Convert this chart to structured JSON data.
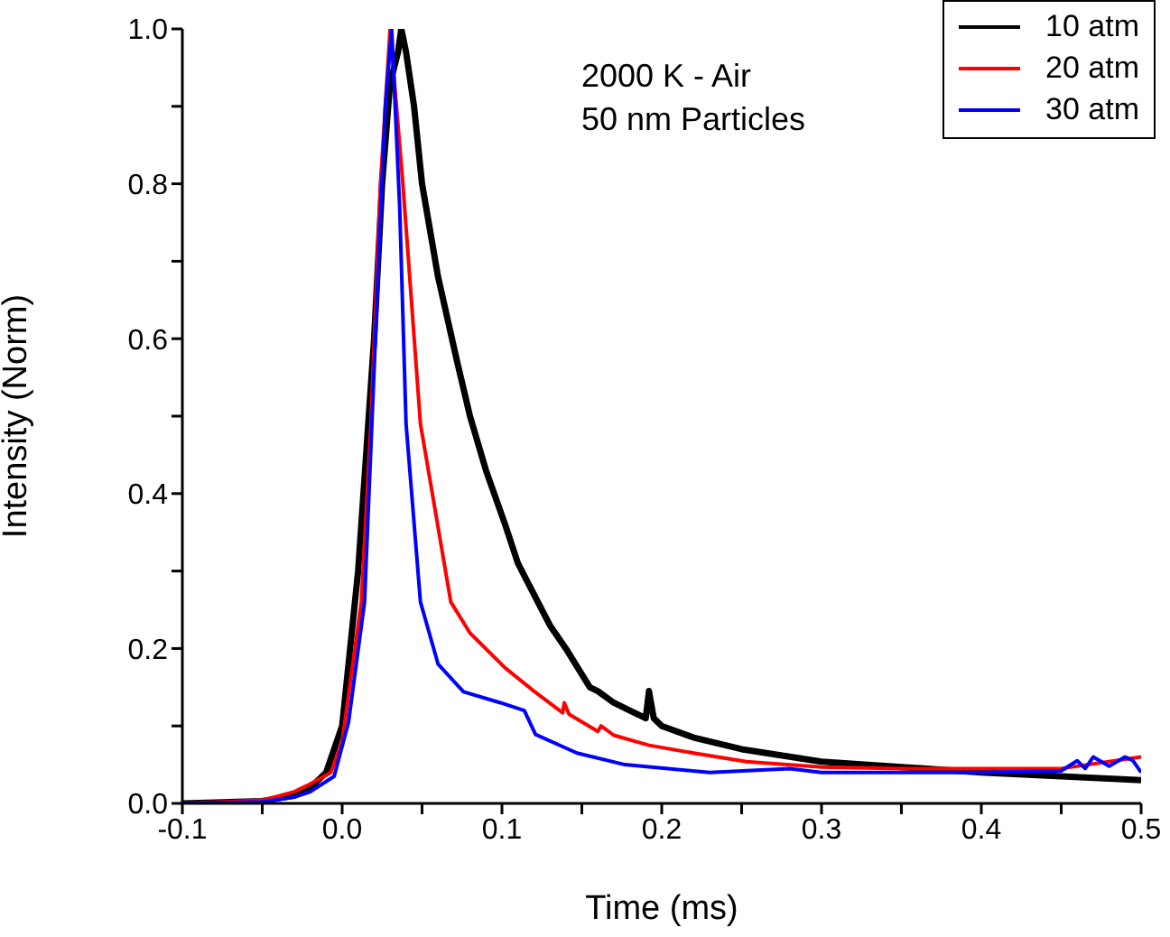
{
  "chart_data": {
    "type": "line",
    "xlabel": "Time (ms)",
    "ylabel": "Intensity (Norm)",
    "annotations": [
      "2000 K - Air",
      "50 nm Particles"
    ],
    "xlim": [
      -0.1,
      0.5
    ],
    "ylim": [
      0,
      1.0
    ],
    "xticks": [
      {
        "value": -0.1,
        "label": "-0.1"
      },
      {
        "value": -0.05,
        "label": null
      },
      {
        "value": 0,
        "label": "0.0"
      },
      {
        "value": 0.05,
        "label": null
      },
      {
        "value": 0.1,
        "label": "0.1"
      },
      {
        "value": 0.15,
        "label": null
      },
      {
        "value": 0.2,
        "label": "0.2"
      },
      {
        "value": 0.25,
        "label": null
      },
      {
        "value": 0.3,
        "label": "0.3"
      },
      {
        "value": 0.35,
        "label": null
      },
      {
        "value": 0.4,
        "label": "0.4"
      },
      {
        "value": 0.45,
        "label": null
      },
      {
        "value": 0.5,
        "label": "0.5"
      }
    ],
    "yticks": [
      {
        "value": 0,
        "label": "0.0"
      },
      {
        "value": 0.1,
        "label": null
      },
      {
        "value": 0.2,
        "label": "0.2"
      },
      {
        "value": 0.3,
        "label": null
      },
      {
        "value": 0.4,
        "label": "0.4"
      },
      {
        "value": 0.5,
        "label": null
      },
      {
        "value": 0.6,
        "label": "0.6"
      },
      {
        "value": 0.7,
        "label": null
      },
      {
        "value": 0.8,
        "label": "0.8"
      },
      {
        "value": 0.9,
        "label": null
      },
      {
        "value": 1.0,
        "label": "1.0"
      }
    ],
    "grid": false,
    "legend": "top right",
    "line_style": "solid",
    "series": [
      {
        "name": "10 atm",
        "color": "#000000",
        "x": [
          -0.1,
          -0.05,
          -0.03,
          -0.02,
          -0.01,
          0,
          0.01,
          0.02,
          0.025,
          0.03,
          0.035,
          0.037,
          0.04,
          0.045,
          0.05,
          0.06,
          0.072,
          0.08,
          0.09,
          0.102,
          0.11,
          0.12,
          0.13,
          0.14,
          0.155,
          0.16,
          0.17,
          0.18,
          0.19,
          0.192,
          0.195,
          0.2,
          0.22,
          0.25,
          0.3,
          0.35,
          0.4,
          0.45,
          0.5
        ],
        "values": [
          0,
          0.003,
          0.01,
          0.02,
          0.04,
          0.1,
          0.3,
          0.6,
          0.8,
          0.93,
          0.97,
          1.0,
          0.97,
          0.9,
          0.8,
          0.68,
          0.57,
          0.5,
          0.43,
          0.36,
          0.31,
          0.27,
          0.23,
          0.2,
          0.15,
          0.145,
          0.13,
          0.12,
          0.11,
          0.145,
          0.11,
          0.1,
          0.085,
          0.07,
          0.054,
          0.047,
          0.04,
          0.035,
          0.03
        ]
      },
      {
        "name": "20 atm",
        "color": "#ff0000",
        "x": [
          -0.1,
          -0.05,
          -0.03,
          -0.02,
          -0.007,
          0,
          0.012,
          0.018,
          0.024,
          0.03,
          0.034,
          0.038,
          0.049,
          0.068,
          0.08,
          0.102,
          0.12,
          0.138,
          0.139,
          0.142,
          0.16,
          0.162,
          0.17,
          0.192,
          0.22,
          0.253,
          0.3,
          0.35,
          0.4,
          0.45,
          0.5
        ],
        "values": [
          0,
          0.004,
          0.015,
          0.025,
          0.04,
          0.08,
          0.26,
          0.49,
          0.8,
          1.0,
          0.9,
          0.8,
          0.49,
          0.26,
          0.22,
          0.175,
          0.145,
          0.117,
          0.13,
          0.115,
          0.093,
          0.1,
          0.088,
          0.075,
          0.065,
          0.054,
          0.047,
          0.045,
          0.045,
          0.045,
          0.06
        ]
      },
      {
        "name": "30 atm",
        "color": "#0000ff",
        "x": [
          -0.1,
          -0.05,
          -0.03,
          -0.02,
          -0.005,
          0.004,
          0.014,
          0.022,
          0.027,
          0.031,
          0.036,
          0.04,
          0.049,
          0.06,
          0.076,
          0.099,
          0.114,
          0.121,
          0.147,
          0.177,
          0.23,
          0.28,
          0.3,
          0.35,
          0.4,
          0.45,
          0.46,
          0.465,
          0.47,
          0.48,
          0.49,
          0.495,
          0.5
        ],
        "values": [
          0,
          0.002,
          0.008,
          0.015,
          0.035,
          0.105,
          0.26,
          0.66,
          0.9,
          1.0,
          0.77,
          0.49,
          0.26,
          0.18,
          0.144,
          0.13,
          0.12,
          0.089,
          0.065,
          0.05,
          0.04,
          0.045,
          0.04,
          0.04,
          0.04,
          0.042,
          0.055,
          0.045,
          0.06,
          0.048,
          0.06,
          0.055,
          0.04
        ]
      }
    ]
  }
}
